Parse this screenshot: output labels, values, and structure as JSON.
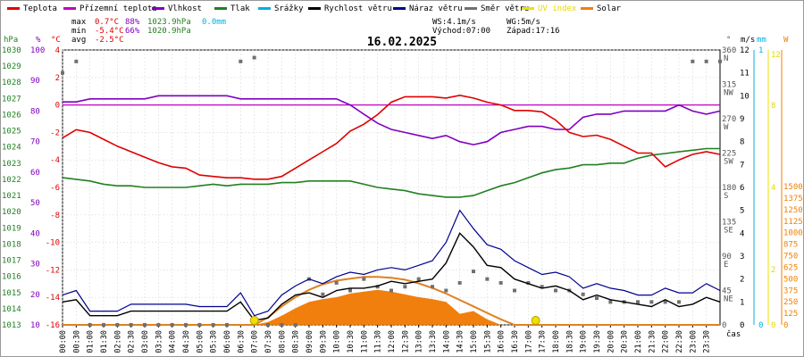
{
  "chart_data": {
    "type": "line",
    "title": "16.02.2025",
    "legend": {
      "placement": "top",
      "items": [
        {
          "name": "Teplota",
          "color": "#e00000"
        },
        {
          "name": "Přízemní teplota",
          "color": "#c000c0"
        },
        {
          "name": "Vlhkost",
          "color": "#8000c0"
        },
        {
          "name": "Tlak",
          "color": "#208020"
        },
        {
          "name": "Srážky",
          "color": "#00b0e0"
        },
        {
          "name": "Rychlost větru",
          "color": "#000000"
        },
        {
          "name": "Náraz větru",
          "color": "#000090"
        },
        {
          "name": "Směr větru",
          "color": "#707070"
        },
        {
          "name": "UV index",
          "color": "#f0e000"
        },
        {
          "name": "Solar",
          "color": "#f08000"
        }
      ]
    },
    "stats": {
      "max_label": "max",
      "max_temp": "0.7°C",
      "max_hum": "88%",
      "max_press": "1023.9hPa",
      "rain": "0.0mm",
      "min_label": "min",
      "min_temp": "-5.4°C",
      "min_hum": "66%",
      "min_press": "1020.9hPa",
      "avg_label": "avg",
      "avg_temp": "-2.5°C",
      "ws": "WS:4.1m/s",
      "wg": "WG:5m/s",
      "sunrise": "Východ:07:00",
      "sunset": "Západ:17:16"
    },
    "axes": {
      "hpa": {
        "label": "hPa",
        "ticks": [
          "1030",
          "1029",
          "1028",
          "1027",
          "1026",
          "1025",
          "1024",
          "1023",
          "1022",
          "1021",
          "1020",
          "1019",
          "1018",
          "1017",
          "1016",
          "1015",
          "1014",
          "1013"
        ],
        "range": [
          1013,
          1030
        ]
      },
      "pct": {
        "label": "%",
        "ticks": [
          "100",
          "90",
          "80",
          "70",
          "60",
          "50",
          "40",
          "30",
          "20",
          "10"
        ]
      },
      "temp": {
        "label": "°C",
        "ticks": [
          "4",
          "2",
          "0",
          "-2",
          "-4",
          "-6",
          "-8",
          "-10",
          "-12",
          "-14",
          "-16"
        ],
        "range": [
          -16,
          4
        ]
      },
      "dir": {
        "label": "°",
        "ticks": [
          "360",
          "315",
          "270",
          "225",
          "180",
          "135",
          "90",
          "45",
          "0"
        ],
        "names": [
          "N",
          "NW",
          "W",
          "SW",
          "S",
          "SE",
          "E",
          "NE"
        ]
      },
      "ms": {
        "label": "m/s",
        "ticks": [
          "12",
          "11",
          "10",
          "9",
          "8",
          "7",
          "6",
          "5",
          "4",
          "3",
          "2",
          "1",
          "0"
        ],
        "range": [
          0,
          12
        ]
      },
      "mm": {
        "label": "mm",
        "ticks": [
          "1",
          "0"
        ]
      },
      "uv": {
        "label": "",
        "ticks": [
          "12",
          "8",
          "4",
          "2",
          "0"
        ]
      },
      "w": {
        "label": "W",
        "ticks": [
          "1500",
          "1375",
          "1250",
          "1125",
          "1000",
          "875",
          "750",
          "625",
          "500",
          "375",
          "250",
          "125",
          "0"
        ],
        "range": [
          0,
          1500
        ]
      },
      "xlabel": "čas",
      "x_ticks": [
        "00:00",
        "00:30",
        "01:00",
        "01:30",
        "02:00",
        "02:30",
        "03:00",
        "03:30",
        "04:00",
        "04:30",
        "05:00",
        "05:30",
        "06:00",
        "06:30",
        "07:00",
        "07:30",
        "08:00",
        "08:30",
        "09:00",
        "09:30",
        "10:00",
        "10:30",
        "11:00",
        "11:30",
        "12:00",
        "12:30",
        "13:00",
        "13:30",
        "14:00",
        "14:30",
        "15:00",
        "15:30",
        "16:00",
        "16:30",
        "17:00",
        "17:30",
        "18:00",
        "18:30",
        "19:00",
        "19:30",
        "20:00",
        "20:30",
        "21:00",
        "21:30",
        "22:00",
        "22:30",
        "23:00",
        "23:30"
      ]
    },
    "x_hours": [
      0,
      0.5,
      1,
      1.5,
      2,
      2.5,
      3,
      3.5,
      4,
      4.5,
      5,
      5.5,
      6,
      6.5,
      7,
      7.5,
      8,
      8.5,
      9,
      9.5,
      10,
      10.5,
      11,
      11.5,
      12,
      12.5,
      13,
      13.5,
      14,
      14.5,
      15,
      15.5,
      16,
      16.5,
      17,
      17.5,
      18,
      18.5,
      19,
      19.5,
      20,
      20.5,
      21,
      21.5,
      22,
      22.5,
      23,
      23.5,
      24
    ],
    "series": [
      {
        "name": "Teplota",
        "unit": "°C",
        "values": [
          -2.4,
          -1.8,
          -2.0,
          -2.5,
          -3.0,
          -3.4,
          -3.8,
          -4.2,
          -4.5,
          -4.6,
          -5.1,
          -5.2,
          -5.3,
          -5.3,
          -5.4,
          -5.4,
          -5.2,
          -4.6,
          -4.0,
          -3.4,
          -2.8,
          -1.9,
          -1.4,
          -0.7,
          0.2,
          0.6,
          0.6,
          0.6,
          0.5,
          0.7,
          0.5,
          0.2,
          0.0,
          -0.4,
          -0.4,
          -0.5,
          -1.1,
          -2.0,
          -2.3,
          -2.2,
          -2.5,
          -3.0,
          -3.5,
          -3.5,
          -4.5,
          -4.0,
          -3.6,
          -3.4,
          -3.6
        ]
      },
      {
        "name": "Přízemní teplota",
        "unit": "°C",
        "values": [
          0,
          0,
          0,
          0,
          0,
          0,
          0,
          0,
          0,
          0,
          0,
          0,
          0,
          0,
          0,
          0,
          0,
          0,
          0,
          0,
          0,
          0,
          0,
          0,
          0,
          0,
          0,
          0,
          0,
          0,
          0,
          0,
          0,
          0,
          0,
          0,
          0,
          0,
          0,
          0,
          0,
          0,
          0,
          0,
          0,
          0,
          0,
          0,
          0
        ]
      },
      {
        "name": "Vlhkost",
        "unit": "%",
        "values": [
          83,
          83,
          84,
          84,
          84,
          84,
          84,
          85,
          85,
          85,
          85,
          85,
          85,
          84,
          84,
          84,
          84,
          84,
          84,
          84,
          84,
          82,
          79,
          76,
          74,
          73,
          72,
          71,
          72,
          70,
          69,
          70,
          73,
          74,
          75,
          75,
          74,
          74,
          78,
          79,
          79,
          80,
          80,
          80,
          80,
          82,
          80,
          79,
          80
        ]
      },
      {
        "name": "Tlak",
        "unit": "hPa",
        "values": [
          1022.1,
          1022.0,
          1021.9,
          1021.7,
          1021.6,
          1021.6,
          1021.5,
          1021.5,
          1021.5,
          1021.5,
          1021.6,
          1021.7,
          1021.6,
          1021.7,
          1021.7,
          1021.7,
          1021.8,
          1021.8,
          1021.9,
          1021.9,
          1021.9,
          1021.9,
          1021.7,
          1021.5,
          1021.4,
          1021.3,
          1021.1,
          1021.0,
          1020.9,
          1020.9,
          1021.0,
          1021.3,
          1021.6,
          1021.8,
          1022.1,
          1022.4,
          1022.6,
          1022.7,
          1022.9,
          1022.9,
          1023.0,
          1023.0,
          1023.3,
          1023.5,
          1023.6,
          1023.7,
          1023.8,
          1023.9,
          1023.9
        ]
      },
      {
        "name": "Rychlost větru",
        "unit": "m/s",
        "values": [
          1.0,
          1.1,
          0.4,
          0.4,
          0.4,
          0.6,
          0.6,
          0.6,
          0.6,
          0.6,
          0.6,
          0.6,
          0.6,
          1.0,
          0.2,
          0.3,
          0.9,
          1.3,
          1.4,
          1.2,
          1.5,
          1.6,
          1.6,
          1.7,
          1.9,
          1.8,
          1.9,
          2.0,
          2.7,
          4.0,
          3.4,
          2.6,
          2.5,
          2.0,
          1.8,
          1.6,
          1.7,
          1.5,
          1.1,
          1.3,
          1.1,
          1.0,
          0.9,
          0.8,
          1.1,
          0.8,
          0.9,
          1.2,
          1.0
        ]
      },
      {
        "name": "Náraz větru",
        "unit": "m/s",
        "values": [
          1.3,
          1.5,
          0.6,
          0.6,
          0.6,
          0.9,
          0.9,
          0.9,
          0.9,
          0.9,
          0.8,
          0.8,
          0.8,
          1.4,
          0.4,
          0.6,
          1.3,
          1.7,
          2.0,
          1.8,
          2.1,
          2.3,
          2.2,
          2.4,
          2.5,
          2.4,
          2.6,
          2.8,
          3.6,
          5.0,
          4.2,
          3.5,
          3.3,
          2.8,
          2.5,
          2.2,
          2.3,
          2.1,
          1.6,
          1.8,
          1.6,
          1.5,
          1.3,
          1.3,
          1.6,
          1.4,
          1.4,
          1.8,
          1.5
        ]
      },
      {
        "name": "Směr větru",
        "unit": "°",
        "values": [
          330,
          345,
          0,
          0,
          0,
          0,
          0,
          0,
          0,
          0,
          0,
          0,
          0,
          345,
          350,
          0,
          0,
          0,
          60,
          40,
          55,
          45,
          60,
          50,
          45,
          50,
          60,
          50,
          45,
          55,
          70,
          60,
          55,
          45,
          55,
          50,
          45,
          45,
          40,
          35,
          30,
          30,
          30,
          30,
          30,
          30,
          345,
          345,
          345
        ]
      },
      {
        "name": "Solar",
        "unit": "W",
        "values": [
          0,
          0,
          0,
          0,
          0,
          0,
          0,
          0,
          0,
          0,
          0,
          0,
          0,
          0,
          0,
          30,
          100,
          180,
          250,
          280,
          300,
          340,
          360,
          380,
          360,
          330,
          300,
          280,
          250,
          120,
          150,
          60,
          0,
          0,
          0,
          0,
          0,
          0,
          0,
          0,
          0,
          0,
          0,
          0,
          0,
          0,
          0,
          0,
          0
        ]
      },
      {
        "name": "Solar (teoretický)",
        "unit": "W",
        "values": [
          0,
          0,
          0,
          0,
          0,
          0,
          0,
          0,
          0,
          0,
          0,
          0,
          0,
          0,
          0,
          80,
          200,
          300,
          380,
          440,
          480,
          500,
          520,
          520,
          510,
          490,
          450,
          400,
          340,
          270,
          200,
          130,
          60,
          0,
          0,
          0,
          0,
          0,
          0,
          0,
          0,
          0,
          0,
          0,
          0,
          0,
          0,
          0,
          0
        ]
      },
      {
        "name": "UV index",
        "unit": "",
        "points": [
          {
            "x": 7.0,
            "y": 0
          },
          {
            "x": 17.27,
            "y": 0
          }
        ]
      }
    ]
  }
}
